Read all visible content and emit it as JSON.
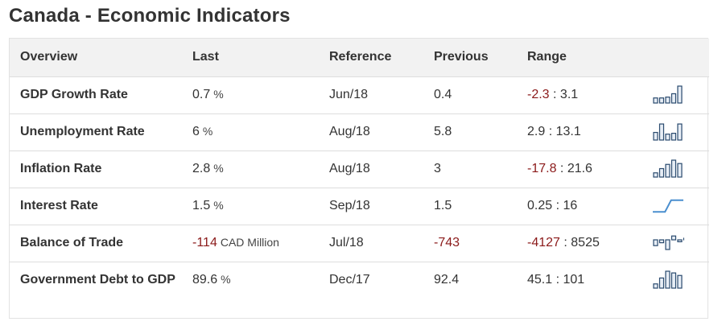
{
  "page": {
    "title": "Canada - Economic Indicators"
  },
  "table": {
    "headers": {
      "overview": "Overview",
      "last": "Last",
      "reference": "Reference",
      "previous": "Previous",
      "range": "Range"
    },
    "rows": [
      {
        "name": "GDP Growth Rate",
        "last": "0.7",
        "unit": "%",
        "reference": "Jun/18",
        "previous": "0.4",
        "range_low": "-2.3",
        "range_sep": " : ",
        "range_high": "3.1",
        "spark": [
          0.3,
          0.3,
          0.35,
          0.55,
          1.0
        ]
      },
      {
        "name": "Unemployment Rate",
        "last": "6",
        "unit": "%",
        "reference": "Aug/18",
        "previous": "5.8",
        "range_low": "2.9",
        "range_sep": " : ",
        "range_high": "13.1",
        "spark": [
          0.45,
          0.95,
          0.35,
          0.4,
          0.95
        ]
      },
      {
        "name": "Inflation Rate",
        "last": "2.8",
        "unit": "%",
        "reference": "Aug/18",
        "previous": "3",
        "range_low": "-17.8",
        "range_sep": " : ",
        "range_high": "21.6",
        "spark": [
          0.25,
          0.5,
          0.75,
          1.0,
          0.8
        ]
      },
      {
        "name": "Interest Rate",
        "last": "1.5",
        "unit": "%",
        "reference": "Sep/18",
        "previous": "1.5",
        "range_low": "0.25",
        "range_sep": " : ",
        "range_high": "16",
        "spark_line": [
          0.9,
          0.9,
          0.9,
          0.1,
          0.1,
          0.1
        ]
      },
      {
        "name": "Balance of Trade",
        "last": "-114",
        "unit": "CAD Million",
        "reference": "Jul/18",
        "previous": "-743",
        "range_low": "-4127",
        "range_sep": " : ",
        "range_high": "8525",
        "spark_pn": [
          0.6,
          0.3,
          1.0,
          -0.4,
          0.2,
          -0.1
        ]
      },
      {
        "name": "Government Debt to GDP",
        "last": "89.6",
        "unit": "%",
        "reference": "Dec/17",
        "previous": "92.4",
        "range_low": "45.1",
        "range_sep": " : ",
        "range_high": "101",
        "spark": [
          0.25,
          0.6,
          1.0,
          0.9,
          0.75
        ]
      }
    ]
  },
  "colors": {
    "negative": "#8b1a1a",
    "spark_stroke": "#2a4a6e",
    "spark_fill": "#e8eef6",
    "line_spark": "#4a8fcf"
  }
}
